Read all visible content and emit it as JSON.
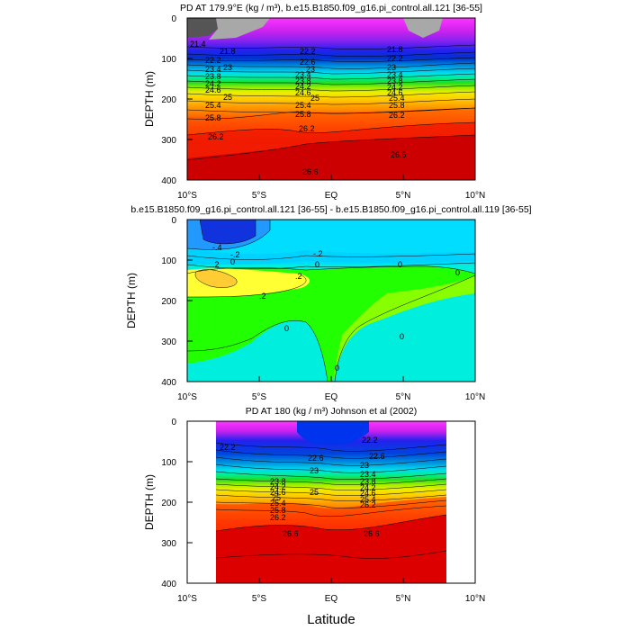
{
  "page": {
    "xlabel": "Latitude"
  },
  "chart_data": [
    {
      "type": "heatmap",
      "title": "PD AT 179.9°E (kg / m³), b.e15.B1850.f09_g16.pi_control.all.121 [36-55]",
      "ylabel": "DEPTH (m)",
      "x_ticks": [
        "10°S",
        "5°S",
        "EQ",
        "5°N",
        "10°N"
      ],
      "y_ticks": [
        "0",
        "100",
        "200",
        "300",
        "400"
      ],
      "xlim": [
        -10,
        10
      ],
      "ylim": [
        0,
        400
      ],
      "contour_labels": [
        "21.4",
        "21.8",
        "22.2",
        "22.6",
        "23",
        "23.4",
        "23.8",
        "24.2",
        "24.6",
        "25",
        "25.4",
        "25.8",
        "26.2",
        "26.6"
      ]
    },
    {
      "type": "heatmap",
      "title": "b.e15.B1850.f09_g16.pi_control.all.121 [36-55] - b.e15.B1850.f09_g16.pi_control.all.119 [36-55]",
      "ylabel": "DEPTH (m)",
      "x_ticks": [
        "10°S",
        "5°S",
        "EQ",
        "5°N",
        "10°N"
      ],
      "y_ticks": [
        "0",
        "100",
        "200",
        "300",
        "400"
      ],
      "xlim": [
        -10,
        10
      ],
      "ylim": [
        0,
        400
      ],
      "contour_labels": [
        "-.4",
        "-.2",
        "0",
        ".2",
        "-.2",
        ".2",
        "0",
        "0"
      ]
    },
    {
      "type": "heatmap",
      "title": "PD AT 180 (kg / m³) Johnson et al (2002)",
      "ylabel": "DEPTH (m)",
      "x_ticks": [
        "10°S",
        "5°S",
        "EQ",
        "5°N",
        "10°N"
      ],
      "y_ticks": [
        "0",
        "100",
        "200",
        "300",
        "400"
      ],
      "xlim": [
        -10,
        10
      ],
      "ylim": [
        0,
        400
      ],
      "data_xlim": [
        -8,
        8
      ],
      "contour_labels": [
        "22.2",
        "22.6",
        "23",
        "23.4",
        "23.8",
        "24.2",
        "24.6",
        "25",
        "25.4",
        "25.8",
        "26.2",
        "26.6"
      ]
    }
  ]
}
